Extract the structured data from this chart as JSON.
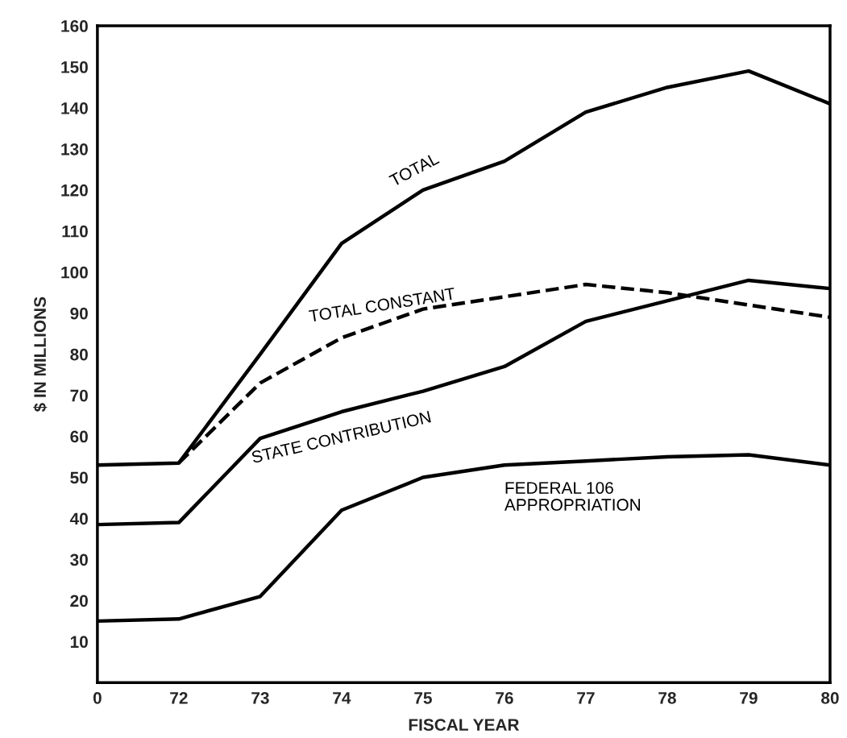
{
  "chart_data": {
    "type": "line",
    "xlabel": "FISCAL YEAR",
    "ylabel": "$ IN MILLIONS",
    "categories": [
      "0",
      "72",
      "73",
      "74",
      "75",
      "76",
      "77",
      "78",
      "79",
      "80"
    ],
    "series": [
      {
        "name": "TOTAL",
        "color": "#000000",
        "line_style": "solid",
        "values": [
          53,
          53.5,
          80,
          107,
          120,
          127,
          139,
          145,
          149,
          141
        ]
      },
      {
        "name": "TOTAL CONSTANT",
        "color": "#000000",
        "line_style": "dashed",
        "values": [
          null,
          53.5,
          73,
          84,
          91,
          94,
          97,
          95,
          92,
          89
        ]
      },
      {
        "name": "STATE CONTRIBUTION",
        "color": "#000000",
        "line_style": "solid",
        "values": [
          38.5,
          39,
          59.5,
          66,
          71,
          77,
          88,
          93,
          98,
          96
        ]
      },
      {
        "name": "FEDERAL 106\nAPPROPRIATION",
        "color": "#000000",
        "line_style": "solid",
        "values": [
          15,
          15.5,
          21,
          42,
          50,
          53,
          54,
          55,
          55.5,
          53
        ]
      }
    ],
    "ylim": [
      0,
      160
    ],
    "yticks": [
      10,
      20,
      30,
      40,
      50,
      60,
      70,
      80,
      90,
      100,
      110,
      120,
      130,
      140,
      150,
      160
    ],
    "grid": false,
    "legend": false,
    "marker": "none"
  }
}
